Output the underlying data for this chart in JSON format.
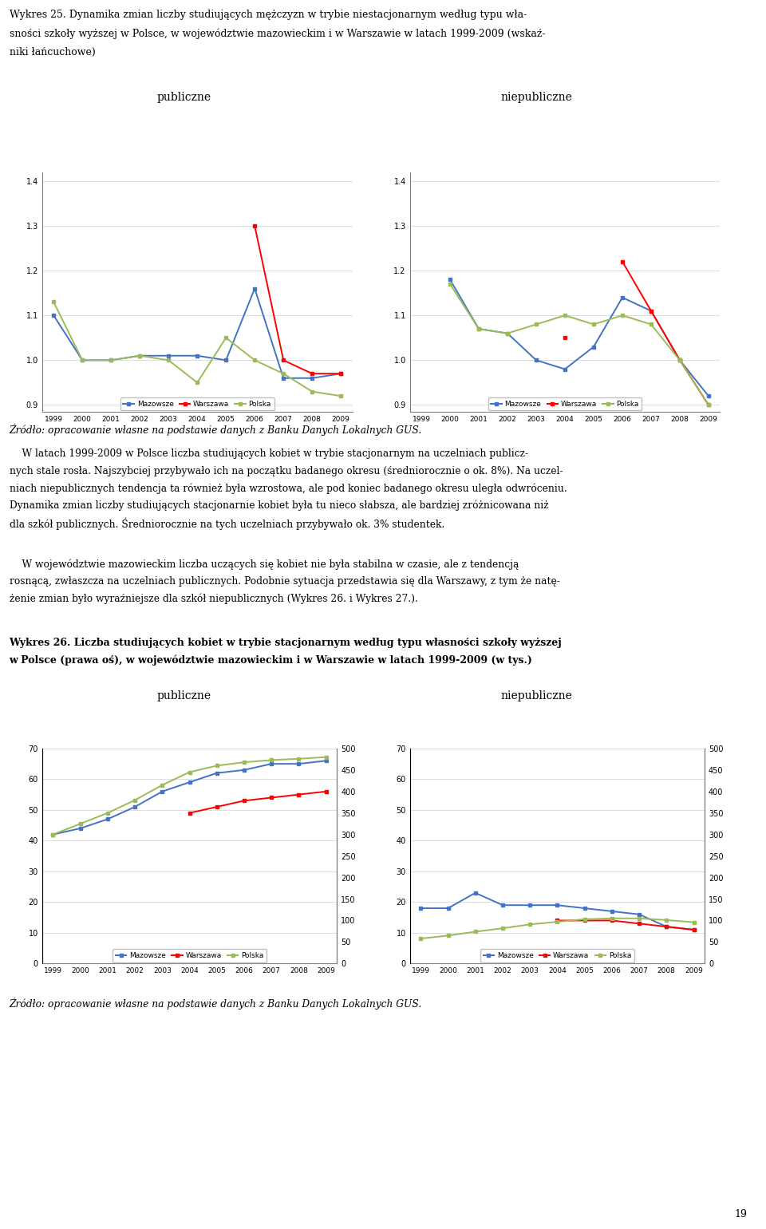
{
  "title_25_line1": "Wykres 25. Dynamika zmian liczby studiujących mężczyzn w trybie niestacjonarnym według typu wła-",
  "title_25_line2": "sności szkoły wyższej w Polsce, w województwie mazowieckim i w Warszawie w latach 1999-2009 (wskaź-",
  "title_25_line3": "niki łańcuchowe)",
  "years": [
    1999,
    2000,
    2001,
    2002,
    2003,
    2004,
    2005,
    2006,
    2007,
    2008,
    2009
  ],
  "chart1_pub_mazowsze": [
    1.1,
    1.0,
    1.0,
    1.01,
    1.01,
    1.01,
    1.0,
    1.16,
    0.96,
    0.96,
    0.97
  ],
  "chart1_pub_warszawa": [
    null,
    null,
    null,
    null,
    null,
    null,
    null,
    1.3,
    1.0,
    0.97,
    0.97
  ],
  "chart1_pub_polska": [
    1.13,
    1.0,
    1.0,
    1.01,
    1.0,
    0.95,
    1.05,
    1.0,
    0.97,
    0.93,
    0.92
  ],
  "chart1_niepub_mazowsze": [
    null,
    1.18,
    1.07,
    1.06,
    1.0,
    0.98,
    1.03,
    1.14,
    1.11,
    1.0,
    0.92
  ],
  "chart1_niepub_warszawa": [
    null,
    null,
    null,
    null,
    null,
    1.05,
    null,
    1.22,
    1.11,
    1.0,
    0.9
  ],
  "chart1_niepub_polska": [
    null,
    1.17,
    1.07,
    1.06,
    1.08,
    1.1,
    1.08,
    1.1,
    1.08,
    1.0,
    0.9
  ],
  "source1": "Źródło: opracowanie własne na podstawie danych z Banku Danych Lokalnych GUS.",
  "para1_lines": [
    "    W latach 1999-2009 w Polsce liczba studiujących kobiet w trybie stacjonarnym na uczelniach publicz-",
    "nych stale rosła. Najszybciej przybywało ich na początku badanego okresu (średniorocznie o ok. 8%). Na uczel-",
    "niach niepublicznych tendencja ta również była wzrostowa, ale pod koniec badanego okresu uległa odwróceniu.",
    "Dynamika zmian liczby studiujących stacjonarnie kobiet była tu nieco słabsza, ale bardziej zróżnicowana niż",
    "dla szkół publicznych. Średniorocznie na tych uczelniach przybywało ok. 3% studentek."
  ],
  "para2_lines": [
    "    W województwie mazowieckim liczba uczących się kobiet nie była stabilna w czasie, ale z tendencją",
    "rosnącą, zwłaszcza na uczelniach publicznych. Podobnie sytuacja przedstawia się dla Warszawy, z tym że natę-",
    "żenie zmian było wyraźniejsze dla szkół niepublicznych (Wykres 26. i Wykres 27.)."
  ],
  "title_26_bold": "Wykres 26. Liczba studiujących kobiet w trybie stacjonarnym według typu własności szkoły wyższej",
  "title_26_bold2": "w Polsce (prawa oś), w województwie mazowieckim i w Warszawie w latach 1999-2009 (w tys.)",
  "chart2_pub_mazowsze": [
    42,
    44,
    47,
    51,
    56,
    59,
    62,
    63,
    65,
    65,
    66
  ],
  "chart2_pub_warszawa": [
    null,
    null,
    null,
    null,
    null,
    49,
    51,
    53,
    54,
    55,
    56
  ],
  "chart2_pub_polska_right": [
    300,
    325,
    350,
    380,
    415,
    445,
    460,
    468,
    473,
    476,
    480
  ],
  "chart2_niepub_mazowsze": [
    18,
    18,
    23,
    19,
    19,
    19,
    18,
    17,
    16,
    12,
    11
  ],
  "chart2_niepub_warszawa": [
    null,
    null,
    null,
    null,
    null,
    14,
    14,
    14,
    13,
    12,
    11
  ],
  "chart2_niepub_polska_right": [
    58,
    65,
    74,
    82,
    91,
    97,
    103,
    105,
    105,
    101,
    96
  ],
  "color_mazowsze": "#4472C4",
  "color_warszawa": "#FF0000",
  "color_polska": "#9BBB59",
  "source2": "Źródło: opracowanie własne na podstawie danych z Banku Danych Lokalnych GUS.",
  "page_num": "19",
  "label_publiczne": "publiczne",
  "label_niepubliczne": "niepubliczne",
  "legend_mazowsze": "Mazowsze",
  "legend_warszawa": "Warszawa",
  "legend_polska": "Polska"
}
